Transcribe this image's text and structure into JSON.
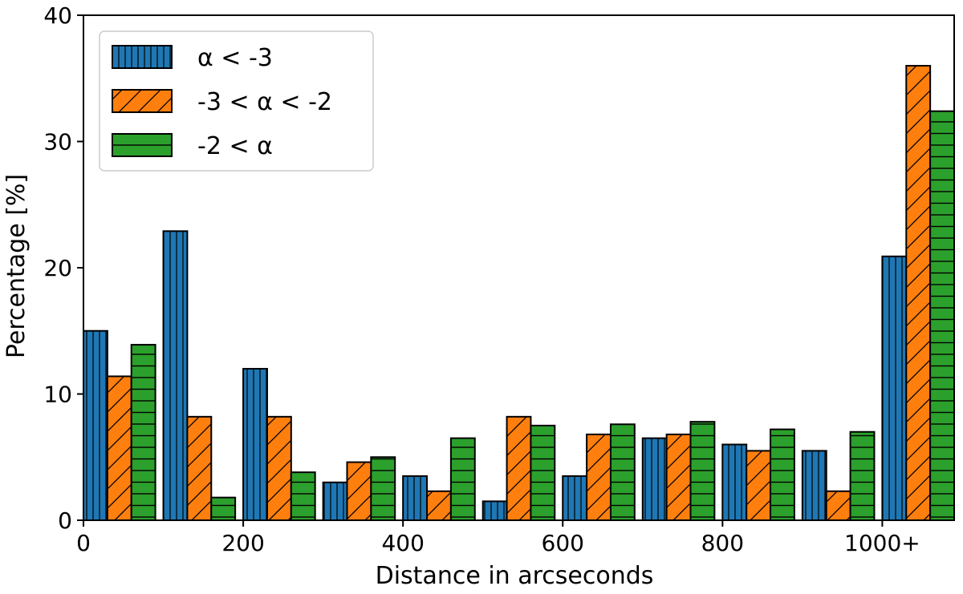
{
  "chart_data": {
    "type": "bar",
    "xlabel": "Distance in arcseconds",
    "ylabel": "Percentage [%]",
    "ylim": [
      0,
      40
    ],
    "yticks": [
      0,
      10,
      20,
      30,
      40
    ],
    "xlim": [
      0,
      1090
    ],
    "xticks": [
      {
        "value": 0,
        "label": "0"
      },
      {
        "value": 200,
        "label": "200"
      },
      {
        "value": 400,
        "label": "400"
      },
      {
        "value": 600,
        "label": "600"
      },
      {
        "value": 800,
        "label": "800"
      },
      {
        "value": 1000,
        "label": "1000+"
      }
    ],
    "bin_starts": [
      0,
      100,
      200,
      300,
      400,
      500,
      600,
      700,
      800,
      900,
      1000
    ],
    "bar_width": 30,
    "grid": false,
    "legend_position": "top-left",
    "series": [
      {
        "name": "α < -3",
        "color": "#1f77b4",
        "hatch": "vertical",
        "values": [
          15.0,
          22.9,
          12.0,
          3.0,
          3.5,
          1.5,
          3.5,
          6.5,
          6.0,
          5.5,
          20.9
        ]
      },
      {
        "name": "-3 < α < -2",
        "color": "#ff7f0e",
        "hatch": "diagonal",
        "values": [
          11.4,
          8.2,
          8.2,
          4.6,
          2.3,
          8.2,
          6.8,
          6.8,
          5.5,
          2.3,
          36.0
        ]
      },
      {
        "name": "-2 < α",
        "color": "#2ca02c",
        "hatch": "horizontal",
        "values": [
          13.9,
          1.8,
          3.8,
          5.0,
          6.5,
          7.5,
          7.6,
          7.8,
          7.2,
          7.0,
          32.4
        ]
      }
    ]
  }
}
